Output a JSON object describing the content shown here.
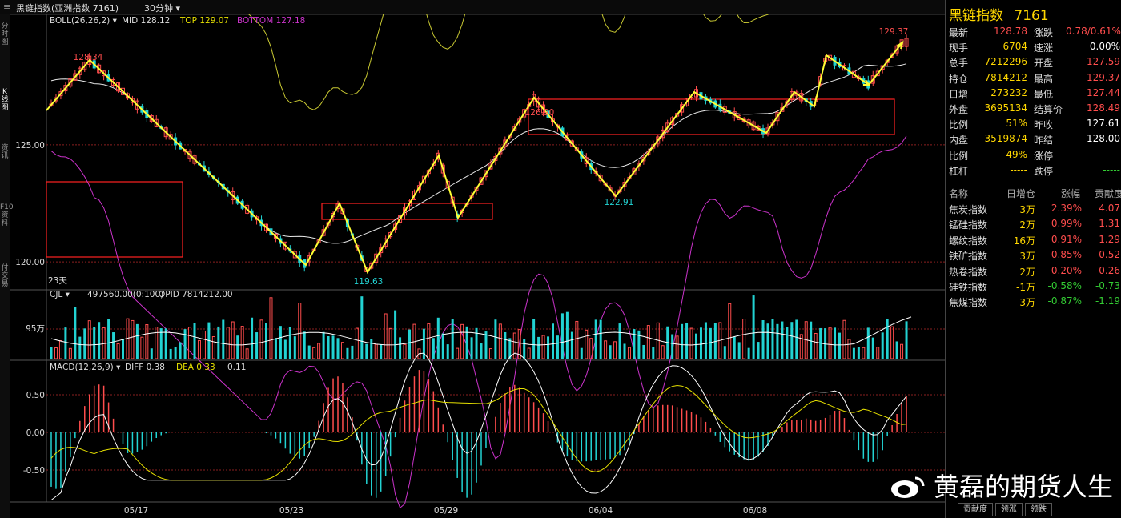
{
  "header": {
    "title": "黑链指数(亚洲指数  7161)",
    "period": "30分钟"
  },
  "left_tabs": [
    "分时图",
    "K线图",
    "资讯",
    "F10资料",
    "付交易"
  ],
  "main": {
    "boll": {
      "label": "BOLL(26,26,2)",
      "mid": "MID 128.12",
      "top": "TOP 129.07",
      "bottom": "BOTTOM 127.18"
    },
    "price_axis": [
      "125.00",
      "120.00"
    ],
    "annotations": {
      "high1": "128.34",
      "low1": "119.63",
      "high2": "126.90",
      "low2": "122.91",
      "high3": "129.37"
    },
    "days_label": "23天",
    "cjl": {
      "label": "CJL",
      "value": "497560.00(0:100)",
      "opid": "OPID 7814212.00",
      "axis": "95万"
    },
    "macd": {
      "label": "MACD(12,26,9)",
      "diff": "DIFF 0.38",
      "dea": "DEA 0.33",
      "macd": "0.11",
      "axis": [
        "0.50",
        "0.00",
        "-0.50"
      ]
    },
    "dates": [
      "05/17",
      "05/23",
      "05/29",
      "06/04",
      "06/08"
    ]
  },
  "quote": {
    "title": "黑链指数",
    "code": "7161",
    "rows": [
      {
        "l1": "最新",
        "v1": "128.78",
        "c1": "#ff4d4d",
        "l2": "涨跌",
        "v2": "0.78/0.61%",
        "c2": "#ff4d4d"
      },
      {
        "l1": "现手",
        "v1": "6704",
        "c1": "#ffd700",
        "l2": "速涨",
        "v2": "0.00%",
        "c2": "#ffffff"
      },
      {
        "l1": "总手",
        "v1": "7212296",
        "c1": "#ffd700",
        "l2": "开盘",
        "v2": "127.59",
        "c2": "#ff4d4d"
      },
      {
        "l1": "持仓",
        "v1": "7814212",
        "c1": "#ffd700",
        "l2": "最高",
        "v2": "129.37",
        "c2": "#ff4d4d"
      },
      {
        "l1": "日增",
        "v1": "273232",
        "c1": "#ffd700",
        "l2": "最低",
        "v2": "127.44",
        "c2": "#ff4d4d"
      },
      {
        "l1": "外盘",
        "v1": "3695134",
        "c1": "#ffd700",
        "l2": "结算价",
        "v2": "128.49",
        "c2": "#ff4d4d"
      },
      {
        "l1": "比例",
        "v1": "51%",
        "c1": "#ffd700",
        "l2": "昨收",
        "v2": "127.61",
        "c2": "#ffffff"
      },
      {
        "l1": "内盘",
        "v1": "3519874",
        "c1": "#ffd700",
        "l2": "昨结",
        "v2": "128.00",
        "c2": "#ffffff"
      },
      {
        "l1": "比例",
        "v1": "49%",
        "c1": "#ffd700",
        "l2": "涨停",
        "v2": "-----",
        "c2": "#ff4d4d"
      },
      {
        "l1": "杠杆",
        "v1": "-----",
        "c1": "#ffd700",
        "l2": "跌停",
        "v2": "-----",
        "c2": "#33cc33"
      }
    ],
    "components_header": [
      "名称",
      "日增仓",
      "涨幅",
      "贡献度"
    ],
    "components": [
      {
        "name": "焦炭指数",
        "inc": "3万",
        "chg": "2.39%",
        "contrib": "4.07",
        "color": "#ff4d4d"
      },
      {
        "name": "锰硅指数",
        "inc": "2万",
        "chg": "0.99%",
        "contrib": "1.31",
        "color": "#ff4d4d"
      },
      {
        "name": "螺纹指数",
        "inc": "16万",
        "chg": "0.91%",
        "contrib": "1.29",
        "color": "#ff4d4d"
      },
      {
        "name": "铁矿指数",
        "inc": "3万",
        "chg": "0.85%",
        "contrib": "0.52",
        "color": "#ff4d4d"
      },
      {
        "name": "热卷指数",
        "inc": "2万",
        "chg": "0.20%",
        "contrib": "0.26",
        "color": "#ff4d4d"
      },
      {
        "name": "硅铁指数",
        "inc": "-1万",
        "chg": "-0.58%",
        "contrib": "-0.73",
        "color": "#33cc33"
      },
      {
        "name": "焦煤指数",
        "inc": "3万",
        "chg": "-0.87%",
        "contrib": "-1.19",
        "color": "#33cc33"
      }
    ]
  },
  "watermark": "黄磊的期货人生",
  "bottom_tabs": [
    "贡献度",
    "领涨",
    "领跌"
  ],
  "colors": {
    "up": "#ff4d4d",
    "down": "#22d3d3",
    "trend": "#ffff33",
    "boll_band": "#c8c832",
    "boll_low": "#cc33cc",
    "box": "#ff2222"
  },
  "chart_data": {
    "type": "candlestick",
    "title": "黑链指数 30分钟",
    "x_tick_labels": [
      "05/17",
      "05/23",
      "05/29",
      "06/04",
      "06/08"
    ],
    "ylim": [
      119.0,
      130.0
    ],
    "key_points": [
      {
        "label": "high",
        "value": 128.34
      },
      {
        "label": "low",
        "value": 119.63
      },
      {
        "label": "high",
        "value": 126.9
      },
      {
        "label": "low",
        "value": 122.91
      },
      {
        "label": "high",
        "value": 129.37
      }
    ],
    "boll": {
      "mid": 128.12,
      "top": 129.07,
      "bottom": 127.18
    },
    "macd": {
      "diff": 0.38,
      "dea": 0.33,
      "macd": 0.11,
      "ylim": [
        -0.8,
        0.8
      ]
    },
    "volume": {
      "value": 497560.0,
      "opid": 7814212.0
    }
  }
}
